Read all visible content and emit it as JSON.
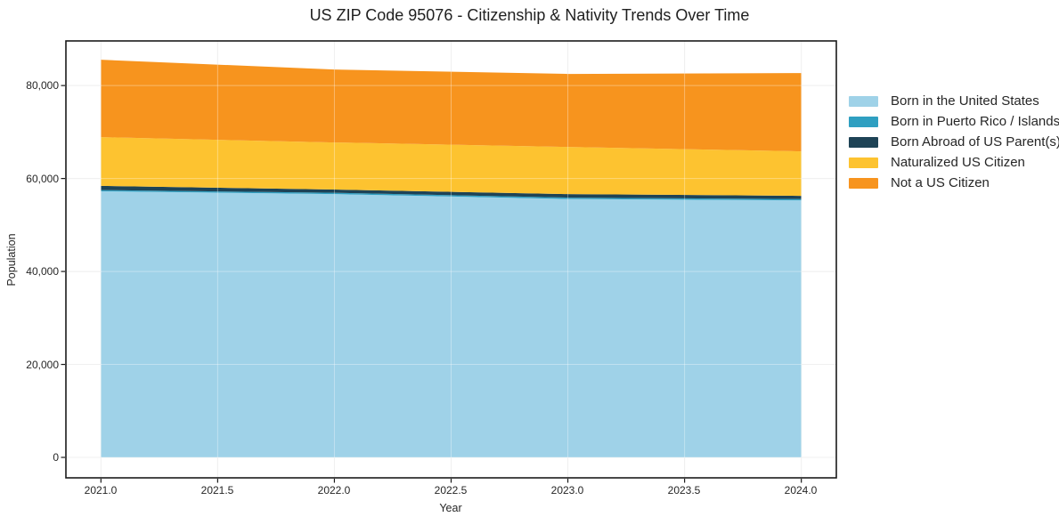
{
  "chart_data": {
    "type": "area",
    "stacked": true,
    "title": "US ZIP Code 95076 - Citizenship & Nativity Trends Over Time",
    "xlabel": "Year",
    "ylabel": "Population",
    "x": [
      2021,
      2022,
      2023,
      2024
    ],
    "series": [
      {
        "name": "Born in the United States",
        "color": "#9fd2e8",
        "values": [
          57250,
          56650,
          55600,
          55300
        ]
      },
      {
        "name": "Born in Puerto Rico / Islands",
        "color": "#2f9fc1",
        "values": [
          270,
          290,
          290,
          290
        ]
      },
      {
        "name": "Born Abroad of US Parent(s)",
        "color": "#1e4356",
        "values": [
          900,
          680,
          760,
          680
        ]
      },
      {
        "name": "Naturalized US Citizen",
        "color": "#fdc330",
        "values": [
          10480,
          10140,
          10150,
          9570
        ]
      },
      {
        "name": "Not a US Citizen",
        "color": "#f7941e",
        "values": [
          16650,
          15690,
          15700,
          16850
        ]
      }
    ],
    "totals": [
      85550,
      83450,
      82500,
      82690
    ],
    "x_ticks": [
      "2021.0",
      "2021.5",
      "2022.0",
      "2022.5",
      "2023.0",
      "2023.5",
      "2024.0"
    ],
    "x_tick_values": [
      2021.0,
      2021.5,
      2022.0,
      2022.5,
      2023.0,
      2023.5,
      2024.0
    ],
    "y_ticks": [
      "0",
      "20,000",
      "40,000",
      "60,000",
      "80,000"
    ],
    "y_tick_values": [
      0,
      20000,
      40000,
      60000,
      80000
    ],
    "xlim": [
      2020.85,
      2024.15
    ],
    "ylim": [
      -4400,
      89600
    ],
    "grid": true,
    "legend_position": "right",
    "colors": {
      "frame": "#1a1a1a",
      "grid_under": "#e8e8e8",
      "grid_over": "rgba(255,255,255,0.35)",
      "background": "#ffffff"
    }
  }
}
